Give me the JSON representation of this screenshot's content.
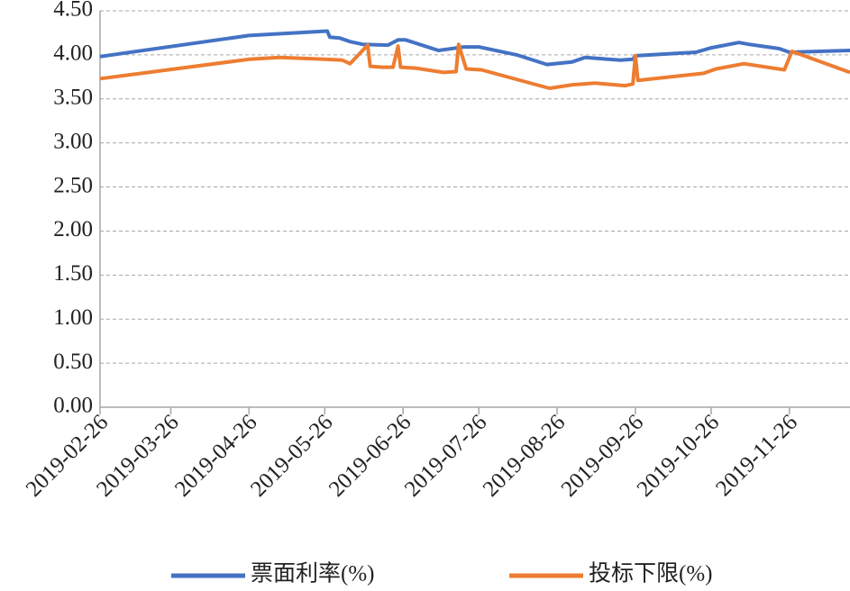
{
  "chart_data": {
    "type": "line",
    "xlim": [
      "2019-02-26",
      "2019-12-20"
    ],
    "xticks": [
      "2019-02-26",
      "2019-03-26",
      "2019-04-26",
      "2019-05-26",
      "2019-06-26",
      "2019-07-26",
      "2019-08-26",
      "2019-09-26",
      "2019-10-26",
      "2019-11-26"
    ],
    "ylim": [
      0,
      4.5
    ],
    "yticks": [
      {
        "value": 0,
        "label": "0.00"
      },
      {
        "value": 0.5,
        "label": "0.50"
      },
      {
        "value": 1,
        "label": "1.00"
      },
      {
        "value": 1.5,
        "label": "1.50"
      },
      {
        "value": 2,
        "label": "2.00"
      },
      {
        "value": 2.5,
        "label": "2.50"
      },
      {
        "value": 3,
        "label": "3.00"
      },
      {
        "value": 3.5,
        "label": "3.50"
      },
      {
        "value": 4,
        "label": "4.00"
      },
      {
        "value": 4.5,
        "label": "4.50"
      }
    ],
    "grid": true,
    "legend": "bottom",
    "series": [
      {
        "name": "票面利率(%)",
        "color": "#4472c4",
        "x": [
          "2019-02-26",
          "2019-04-26",
          "2019-05-27",
          "2019-05-28",
          "2019-06-01",
          "2019-06-05",
          "2019-06-10",
          "2019-06-20",
          "2019-06-24",
          "2019-06-27",
          "2019-07-10",
          "2019-07-20",
          "2019-07-26",
          "2019-08-10",
          "2019-08-22",
          "2019-08-25",
          "2019-09-01",
          "2019-09-06",
          "2019-09-20",
          "2019-09-25",
          "2019-09-26",
          "2019-10-20",
          "2019-10-26",
          "2019-11-06",
          "2019-11-10",
          "2019-11-22",
          "2019-11-26",
          "2019-12-20"
        ],
        "values": [
          3.98,
          4.22,
          4.27,
          4.2,
          4.19,
          4.15,
          4.12,
          4.11,
          4.17,
          4.17,
          4.05,
          4.09,
          4.09,
          4.0,
          3.89,
          3.9,
          3.92,
          3.97,
          3.94,
          3.95,
          3.99,
          4.03,
          4.08,
          4.14,
          4.12,
          4.07,
          4.03,
          4.05
        ]
      },
      {
        "name": "投标下限(%)",
        "color": "#ed7d31",
        "x": [
          "2019-02-26",
          "2019-04-26",
          "2019-05-08",
          "2019-05-26",
          "2019-06-02",
          "2019-06-05",
          "2019-06-12",
          "2019-06-13",
          "2019-06-18",
          "2019-06-22",
          "2019-06-24",
          "2019-06-25",
          "2019-07-01",
          "2019-07-12",
          "2019-07-17",
          "2019-07-18",
          "2019-07-21",
          "2019-07-27",
          "2019-08-23",
          "2019-09-01",
          "2019-09-10",
          "2019-09-22",
          "2019-09-25",
          "2019-09-26",
          "2019-09-27",
          "2019-10-23",
          "2019-10-28",
          "2019-11-08",
          "2019-11-24",
          "2019-11-27",
          "2019-12-20"
        ],
        "values": [
          3.73,
          3.95,
          3.97,
          3.95,
          3.94,
          3.9,
          4.11,
          3.87,
          3.86,
          3.86,
          4.1,
          3.86,
          3.85,
          3.8,
          3.81,
          4.12,
          3.84,
          3.83,
          3.62,
          3.66,
          3.68,
          3.65,
          3.67,
          3.99,
          3.71,
          3.79,
          3.84,
          3.9,
          3.83,
          4.04,
          3.8
        ]
      }
    ]
  }
}
